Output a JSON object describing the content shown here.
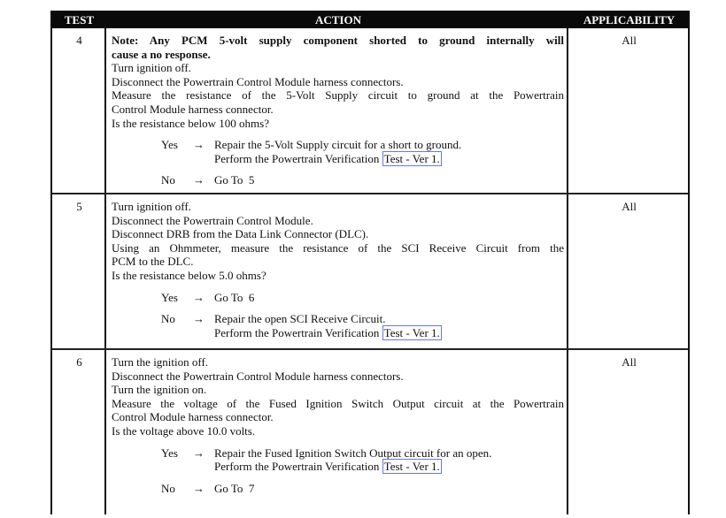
{
  "header": {
    "test": "TEST",
    "action": "ACTION",
    "applicability": "APPLICABILITY"
  },
  "rows": [
    {
      "test": "4",
      "applicability": "All",
      "note": [
        "Note: Any PCM 5-volt supply component shorted to ground internally will",
        "cause a no response."
      ],
      "lines": [
        "Turn ignition off.",
        "Disconnect the Powertrain Control Module harness connectors.",
        "Measure the resistance of the 5-Volt Supply circuit to ground at the Powertrain",
        "Control Module harness connector.",
        "Is the resistance below 100 ohms?"
      ],
      "yes": {
        "label": "Yes",
        "arrow": "→",
        "text": "Repair the 5-Volt Supply circuit for a short to ground.",
        "text2": "Perform the Powertrain Verification",
        "link": "Test - Ver 1."
      },
      "no": {
        "label": "No",
        "arrow": "→",
        "text": "Go To  5"
      }
    },
    {
      "test": "5",
      "applicability": "All",
      "lines": [
        "Turn ignition off.",
        "Disconnect the Powertrain Control Module.",
        "Disconnect DRB from the Data Link Connector (DLC).",
        "Using an Ohmmeter, measure the resistance of the SCI Receive Circuit from the",
        "PCM to the DLC.",
        "Is the resistance below 5.0 ohms?"
      ],
      "yes": {
        "label": "Yes",
        "arrow": "→",
        "text": "Go To  6"
      },
      "no": {
        "label": "No",
        "arrow": "→",
        "text": "Repair the open SCI Receive Circuit.",
        "text2": "Perform the Powertrain Verification",
        "link": "Test - Ver 1."
      }
    },
    {
      "test": "6",
      "applicability": "All",
      "lines": [
        "Turn the ignition off.",
        "Disconnect the Powertrain Control Module harness connectors.",
        "Turn the ignition on.",
        "Measure the voltage of the Fused Ignition Switch Output circuit at the Powertrain",
        "Control Module harness connector.",
        "Is the voltage above 10.0 volts."
      ],
      "yes": {
        "label": "Yes",
        "arrow": "→",
        "text": "Repair the Fused Ignition Switch Output circuit for an open.",
        "text2": "Perform the Powertrain Verification",
        "link": "Test - Ver 1."
      },
      "no": {
        "label": "No",
        "arrow": "→",
        "text": "Go To  7"
      }
    }
  ]
}
